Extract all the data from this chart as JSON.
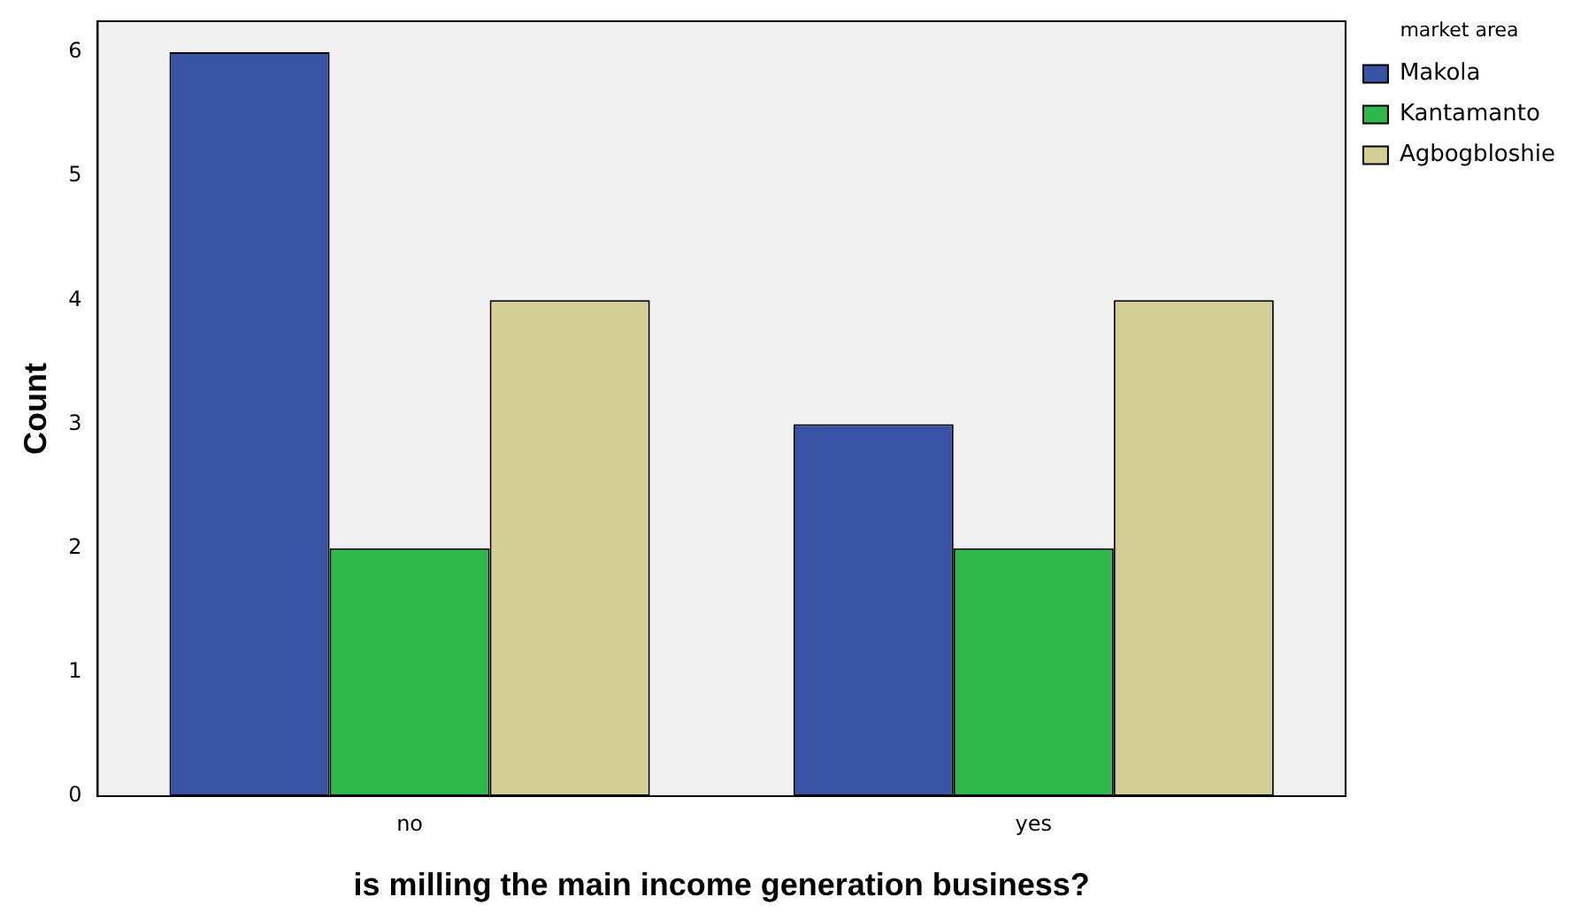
{
  "chart_data": {
    "type": "bar",
    "xlabel": "is milling the main income generation business?",
    "ylabel": "Count",
    "legend_title": "market area",
    "legend": "top right",
    "categories": [
      "no",
      "yes"
    ],
    "series": [
      {
        "name": "Makola",
        "color": "#3953a4",
        "values": [
          6,
          3
        ]
      },
      {
        "name": "Kantamanto",
        "color": "#2fb74a",
        "values": [
          2,
          2
        ]
      },
      {
        "name": "Agbogbloshie",
        "color": "#d4cf96",
        "values": [
          4,
          4
        ]
      }
    ],
    "ylim": [
      0,
      6.25
    ],
    "yticks": [
      0,
      1,
      2,
      3,
      4,
      5,
      6
    ],
    "grid": false
  }
}
